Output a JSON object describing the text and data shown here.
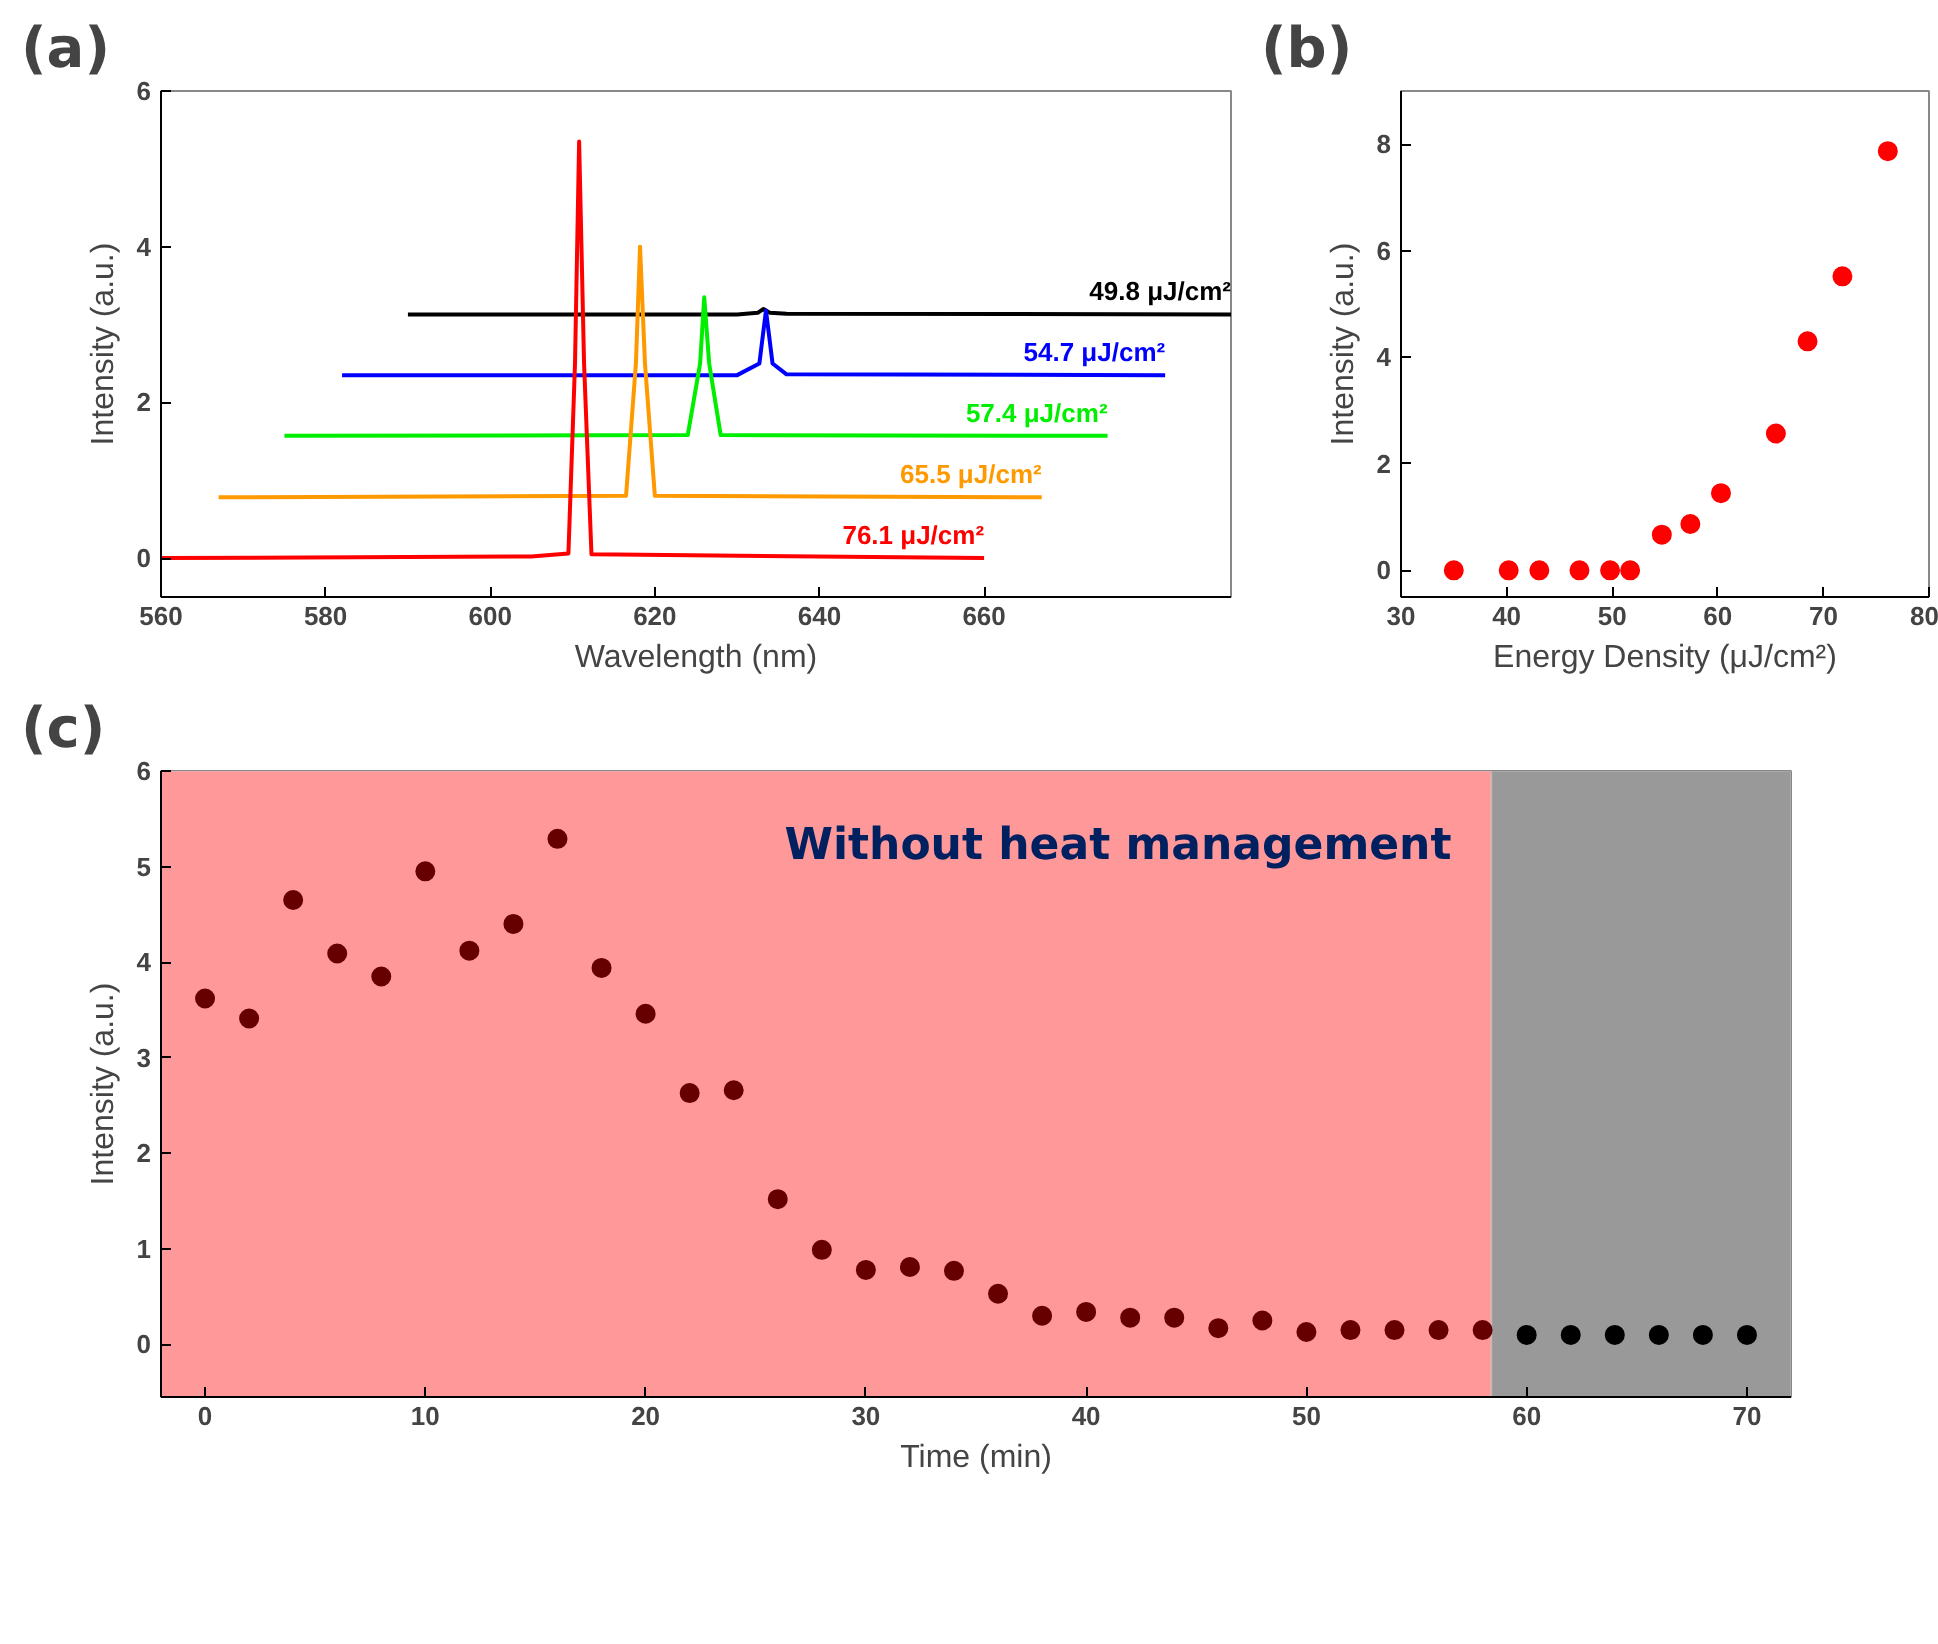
{
  "chart_data": [
    {
      "type": "line",
      "annotations": [
        "(a)"
      ],
      "xlabel": "Wavelength (nm)",
      "ylabel": "Intensity (a.u.)",
      "xlim": [
        560,
        690
      ],
      "ylim": [
        -0.5,
        6
      ],
      "xticks": [
        560,
        580,
        600,
        620,
        640,
        660
      ],
      "yticks": [
        0,
        2,
        4,
        6
      ],
      "grid": false,
      "marker": "none",
      "line_style": "solid",
      "series": [
        {
          "name": "49.8 μJ/cm²",
          "color": "#000000",
          "x": [
            590,
            630,
            632.5,
            633.2,
            634,
            636,
            690
          ],
          "values": [
            3.13,
            3.13,
            3.15,
            3.2,
            3.15,
            3.14,
            3.13
          ]
        },
        {
          "name": "54.7 μJ/cm²",
          "color": "#0000ff",
          "x": [
            582,
            630,
            632.7,
            633.5,
            634.3,
            636,
            682
          ],
          "values": [
            2.35,
            2.35,
            2.5,
            3.18,
            2.5,
            2.36,
            2.35
          ]
        },
        {
          "name": "57.4 μJ/cm²",
          "color": "#00ee00",
          "x": [
            575,
            624,
            625.5,
            626,
            626.6,
            628,
            675
          ],
          "values": [
            1.57,
            1.58,
            2.5,
            3.35,
            2.5,
            1.58,
            1.57
          ]
        },
        {
          "name": "65.5 μJ/cm²",
          "color": "#ff9900",
          "x": [
            567,
            616.5,
            617.7,
            618.2,
            618.8,
            620,
            667
          ],
          "values": [
            0.78,
            0.8,
            2.5,
            4.0,
            2.5,
            0.8,
            0.78
          ]
        },
        {
          "name": "76.1 μJ/cm²",
          "color": "#ff0000",
          "x": [
            560,
            605,
            609.5,
            610.3,
            610.8,
            611.4,
            612.3,
            660
          ],
          "values": [
            0,
            0.02,
            0.06,
            2.5,
            5.35,
            2.5,
            0.05,
            0
          ]
        }
      ]
    },
    {
      "type": "scatter",
      "annotations": [
        "(b)"
      ],
      "xlabel": "Energy Density (μJ/cm²)",
      "ylabel": "Intensity (a.u.)",
      "xlim": [
        30,
        80
      ],
      "ylim": [
        -0.5,
        9
      ],
      "xticks": [
        30,
        40,
        50,
        60,
        70,
        80
      ],
      "yticks": [
        0,
        2,
        4,
        6,
        8
      ],
      "grid": false,
      "marker": "circle",
      "series": [
        {
          "color": "#ff0000",
          "x": [
            35,
            40.2,
            43.1,
            46.9,
            49.8,
            51.7,
            54.7,
            57.4,
            60.3,
            65.5,
            68.5,
            71.8,
            76.1
          ],
          "values": [
            0,
            0,
            0,
            0,
            0,
            0,
            0.67,
            0.87,
            1.45,
            2.57,
            4.3,
            5.52,
            7.87
          ]
        }
      ]
    },
    {
      "type": "scatter",
      "annotations": [
        "(c)"
      ],
      "xlabel": "Time (min)",
      "ylabel": "Intensity (a.u.)",
      "xlim": [
        -2,
        72
      ],
      "ylim": [
        -0.55,
        6
      ],
      "xticks": [
        0,
        10,
        20,
        30,
        40,
        50,
        60,
        70
      ],
      "yticks": [
        0,
        1,
        2,
        3,
        4,
        5,
        6
      ],
      "grid": false,
      "marker": "circle",
      "bands": [
        {
          "axis": "x",
          "from": -2,
          "to": 58.4,
          "label": "Without heat management",
          "color": "#ff9999"
        },
        {
          "axis": "x",
          "from": 58.4,
          "to": 72,
          "color": "#999999"
        }
      ],
      "series": [
        {
          "color": "#660000",
          "x": [
            0,
            2,
            4,
            6,
            8,
            10,
            12,
            14,
            16,
            18,
            20,
            22,
            24,
            26,
            28,
            30,
            32,
            34,
            36,
            38,
            40,
            42,
            44,
            46,
            48,
            50,
            52,
            54,
            56,
            58
          ],
          "values": [
            3.62,
            3.41,
            4.65,
            4.09,
            3.85,
            4.95,
            4.12,
            4.4,
            5.29,
            3.94,
            3.46,
            2.63,
            2.66,
            1.52,
            0.99,
            0.78,
            0.81,
            0.77,
            0.53,
            0.3,
            0.34,
            0.28,
            0.28,
            0.17,
            0.25,
            0.13,
            0.15,
            0.15,
            0.15,
            0.15
          ]
        },
        {
          "color": "#000000",
          "x": [
            60,
            62,
            64,
            66,
            68,
            70
          ],
          "values": [
            0.1,
            0.1,
            0.1,
            0.1,
            0.1,
            0.1
          ]
        }
      ]
    }
  ]
}
